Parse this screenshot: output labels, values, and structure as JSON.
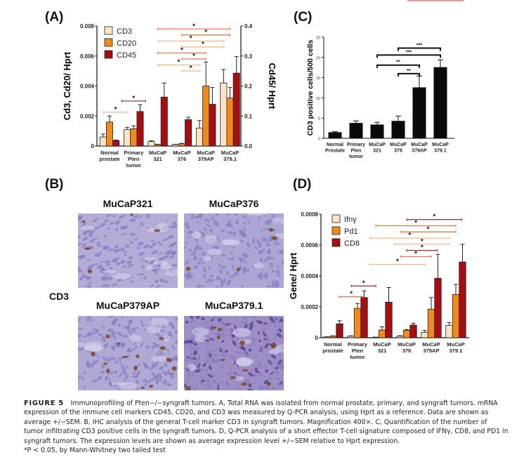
{
  "panels": {
    "a": {
      "label": "(A)"
    },
    "b": {
      "label": "(B)"
    },
    "c": {
      "label": "(C)"
    },
    "d": {
      "label": "(D)"
    }
  },
  "colors": {
    "cd3": "#fbe3c4",
    "cd20": "#f08a1c",
    "cd45": "#a50f12",
    "black": "#0a0a0a",
    "sig_light": "#f4b98a",
    "sig_mid": "#e8794a",
    "sig_dark": "#9c3a4a"
  },
  "ihc": {
    "row_label": "CD3",
    "images": [
      {
        "title": "MuCaP321",
        "tone": "#b3acd6"
      },
      {
        "title": "MuCaP376",
        "tone": "#aca6d4"
      },
      {
        "title": "MuCaP379AP",
        "tone": "#b0a8d5"
      },
      {
        "title": "MuCaP379.1",
        "tone": "#9d8fc6"
      }
    ]
  },
  "caption": {
    "figure_no": "FIGURE 5",
    "text": "Immunoprofiling of Pten−/−syngraft tumors. A, Total RNA was isolated from normal prostate, primary, and syngraft tumors. mRNA expression of the immune cell markers CD45, CD20, and CD3 was measured by Q-PCR analysis, using Hprt as a reference. Data are shown as average +/−SEM. B, IHC analysis of the general T-cell marker CD3 in syngraft tumors. Magnification 400×. C, Quantification of the number of tumor infiltrating CD3 positive cells in the syngraft tumors. D, Q-PCR analysis of a short effector T-cell signature composed of IFNγ, CD8, and PD1 in syngraft tumors. The expression levels are shown as average expression level +/−SEM relative to Hprt expression.",
    "footnote": "*P < 0.05, by Mann-Whitney two tailed test"
  },
  "chart_data": [
    {
      "id": "A",
      "type": "bar",
      "title": "",
      "categories": [
        [
          "Normal",
          "prostate"
        ],
        [
          "Primary",
          "Pten",
          "tumor"
        ],
        [
          "MuCaP",
          "321"
        ],
        [
          "MuCaP",
          "376"
        ],
        [
          "MuCaP",
          "379AP"
        ],
        [
          "MuCaP",
          "379.1"
        ]
      ],
      "ylabel": "Cd3, Cd20/ Hprt",
      "y2label": "Cd45/ Hprt",
      "ylim": [
        0,
        0.008
      ],
      "y2lim": [
        0,
        0.4
      ],
      "yticks": [
        "0",
        "0.002",
        "0.004",
        "0.006",
        "0.008"
      ],
      "y2ticks": [
        "0.0",
        "0.1",
        "0.2",
        "0.3",
        "0.4"
      ],
      "legend_position": "top-left",
      "series": [
        {
          "name": "CD3",
          "axis": "left",
          "color": "#fbe3c4",
          "values": [
            0.0006,
            0.0011,
            0.0003,
            0.0001,
            0.0012,
            0.0042
          ],
          "errors": [
            0.0002,
            0.00015,
            5e-05,
            2e-05,
            0.0005,
            0.0009
          ]
        },
        {
          "name": "CD20",
          "axis": "left",
          "color": "#f08a1c",
          "values": [
            0.0016,
            0.00115,
            0.0001,
            0.00015,
            0.004,
            0.0032
          ],
          "errors": [
            0.0004,
            0.0002,
            2e-05,
            3e-05,
            0.0016,
            0.0007
          ]
        },
        {
          "name": "CD45",
          "axis": "right",
          "color": "#a50f12",
          "values": [
            0.018,
            0.115,
            0.163,
            0.088,
            0.139,
            0.243
          ],
          "errors": [
            0.002,
            0.023,
            0.047,
            0.008,
            0.056,
            0.055
          ]
        }
      ],
      "significance": [
        {
          "from": 2,
          "to": 5,
          "label": "*",
          "y": 0.0078,
          "shade": "mid"
        },
        {
          "from": 3,
          "to": 5,
          "label": "*",
          "y": 0.0074,
          "shade": "mid"
        },
        {
          "from": 2,
          "to": 4.75,
          "label": "*",
          "y": 0.007,
          "shade": "light"
        },
        {
          "from": 3,
          "to": 4.75,
          "label": "*",
          "y": 0.0066,
          "shade": "light"
        },
        {
          "from": 2,
          "to": 4,
          "label": "*",
          "y": 0.0062,
          "shade": "mid"
        },
        {
          "from": 3,
          "to": 4,
          "label": "*",
          "y": 0.0058,
          "shade": "mid"
        },
        {
          "from": 2,
          "to": 3.75,
          "label": "*",
          "y": 0.0054,
          "shade": "light"
        },
        {
          "from": 3,
          "to": 3.75,
          "label": "*",
          "y": 0.005,
          "shade": "light"
        },
        {
          "from": 0.5,
          "to": 1.5,
          "label": "*",
          "y": 0.003,
          "shade": "dark"
        },
        {
          "from": -0.25,
          "to": 0.75,
          "label": "*",
          "y": 0.00225,
          "shade": "light"
        }
      ]
    },
    {
      "id": "C",
      "type": "bar",
      "title": "",
      "categories": [
        [
          "Normal",
          "Prostate"
        ],
        [
          "Primary",
          "Pten",
          "tumor"
        ],
        [
          "MuCaP",
          "321"
        ],
        [
          "MuCaP",
          "376"
        ],
        [
          "MuCaP",
          "379AP"
        ],
        [
          "MuCaP",
          "379.1"
        ]
      ],
      "ylabel": "CD3 positive cells/500 cells",
      "ylim": [
        0,
        25
      ],
      "yticks": [
        "0",
        "5",
        "10",
        "15",
        "20",
        "25"
      ],
      "series": [
        {
          "name": "CD3",
          "color": "#0a0a0a",
          "values": [
            1.5,
            3.8,
            3.4,
            4.3,
            12.6,
            17.6
          ],
          "errors": [
            0.15,
            0.5,
            0.55,
            1.2,
            2.8,
            1.8
          ]
        }
      ],
      "significance": [
        {
          "from": 3,
          "to": 5,
          "label": "***",
          "y": 22.3
        },
        {
          "from": 2,
          "to": 5,
          "label": "***",
          "y": 20.6
        },
        {
          "from": 2,
          "to": 4,
          "label": "**",
          "y": 18.1
        },
        {
          "from": 3,
          "to": 4,
          "label": "**",
          "y": 16.0
        }
      ]
    },
    {
      "id": "D",
      "type": "bar",
      "title": "",
      "categories": [
        [
          "Normal",
          "prostate"
        ],
        [
          "Primary",
          "Pten",
          "tumor"
        ],
        [
          "MuCaP",
          "321"
        ],
        [
          "MuCaP",
          "376"
        ],
        [
          "MuCaP",
          "379AP"
        ],
        [
          "MuCaP",
          "379.1"
        ]
      ],
      "ylabel": "Gene/ Hprt",
      "ylim": [
        0,
        0.0008
      ],
      "yticks": [
        "0",
        "0.0002",
        "0.0004",
        "0.0006",
        "0.0008"
      ],
      "legend_position": "top-left",
      "series": [
        {
          "name": "Ifnγ",
          "color": "#fbe3c4",
          "values": [
            5e-06,
            1e-05,
            3e-06,
            1e-05,
            3.5e-05,
            8e-05
          ],
          "errors": [
            1e-06,
            2e-06,
            1e-06,
            3e-06,
            1.2e-05,
            1.8e-05
          ]
        },
        {
          "name": "Pd1",
          "color": "#f08a1c",
          "values": [
            1e-05,
            0.00019,
            5e-05,
            4.8e-05,
            0.000185,
            0.00028
          ],
          "errors": [
            2e-06,
            3.2e-05,
            2e-05,
            4e-06,
            7.5e-05,
            6.5e-05
          ]
        },
        {
          "name": "CD8",
          "color": "#a50f12",
          "values": [
            9e-05,
            0.00026,
            0.00023,
            8.2e-05,
            0.000385,
            0.00049
          ],
          "errors": [
            2e-05,
            4.3e-05,
            9.5e-05,
            1.2e-05,
            0.000155,
            0.000115
          ]
        }
      ],
      "significance": [
        {
          "from": 3,
          "to": 5.25,
          "label": "*",
          "y": 0.000765,
          "shade": "dark"
        },
        {
          "from": 1.75,
          "to": 5,
          "label": "*",
          "y": 0.000725,
          "shade": "mid"
        },
        {
          "from": 2.75,
          "to": 5,
          "label": "*",
          "y": 0.000685,
          "shade": "mid"
        },
        {
          "from": 1.5,
          "to": 4.75,
          "label": "*",
          "y": 0.000645,
          "shade": "light"
        },
        {
          "from": 2.5,
          "to": 4.75,
          "label": "*",
          "y": 0.000605,
          "shade": "light"
        },
        {
          "from": 3,
          "to": 4.25,
          "label": "*",
          "y": 0.000565,
          "shade": "dark"
        },
        {
          "from": 2.75,
          "to": 4,
          "label": "*",
          "y": 0.000525,
          "shade": "mid"
        },
        {
          "from": 1.5,
          "to": 3.75,
          "label": "*",
          "y": 0.000475,
          "shade": "light"
        },
        {
          "from": 0.75,
          "to": 1.75,
          "label": "*",
          "y": 0.000335,
          "shade": "dark"
        },
        {
          "from": 0.25,
          "to": 1.25,
          "label": "*",
          "y": 0.000265,
          "shade": "mid"
        }
      ]
    }
  ]
}
